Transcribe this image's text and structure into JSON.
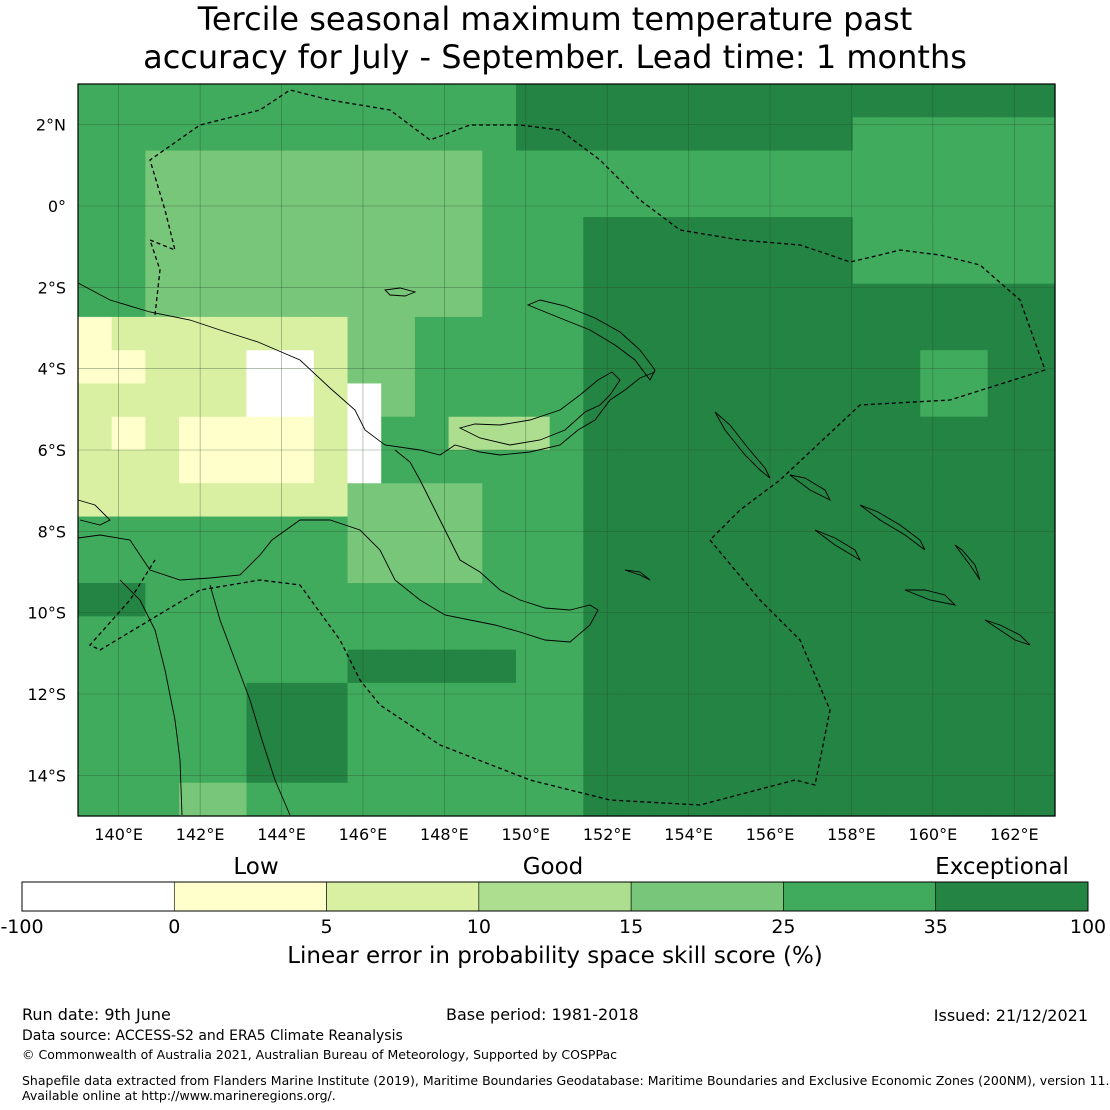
{
  "title_line1": "Tercile seasonal maximum temperature past",
  "title_line2": "accuracy for July - September. Lead time: 1 months",
  "map": {
    "lon_range": [
      139,
      163
    ],
    "lat_range": [
      -15,
      3
    ],
    "lon_ticks": [
      "140°E",
      "142°E",
      "144°E",
      "146°E",
      "148°E",
      "150°E",
      "152°E",
      "154°E",
      "156°E",
      "158°E",
      "160°E",
      "162°E"
    ],
    "lat_ticks": [
      "2°N",
      "0°",
      "2°S",
      "4°S",
      "6°S",
      "8°S",
      "10°S",
      "12°S",
      "14°S"
    ],
    "colors": {
      "below_0": "#ffffff",
      "c0_5": "#ffffcc",
      "c5_10": "#d9f0a3",
      "c10_15": "#addd8e",
      "c15_25": "#78c679",
      "c25_35": "#41ab5d",
      "c35_100": "#238443",
      "gridline": "#2b4a2b",
      "coast": "#000000",
      "eez": "#000000"
    }
  },
  "colorbar": {
    "categories": [
      "Low",
      "Good",
      "Exceptional"
    ],
    "tick_labels": [
      "-100",
      "0",
      "5",
      "10",
      "15",
      "25",
      "35",
      "100"
    ],
    "colors": [
      "#ffffff",
      "#ffffcc",
      "#d9f0a3",
      "#addd8e",
      "#78c679",
      "#41ab5d",
      "#238443"
    ],
    "label": "Linear error in probability space skill score (%)"
  },
  "footer": {
    "run_date": "Run date: 9th June",
    "base_period": "Base period: 1981-2018",
    "issued": "Issued: 21/12/2021",
    "data_source": "Data source: ACCESS-S2 and ERA5 Climate Reanalysis",
    "copyright": "© Commonwealth of Australia 2021, Australian Bureau of Meteorology, Supported by COSPPac",
    "shapefile_line1": "Shapefile data extracted from Flanders Marine Institute (2019), Maritime Boundaries Geodatabase: Maritime Boundaries and Exclusive Economic Zones (200NM), version 11.",
    "shapefile_line2": "Available online at http://www.marineregions.org/."
  }
}
